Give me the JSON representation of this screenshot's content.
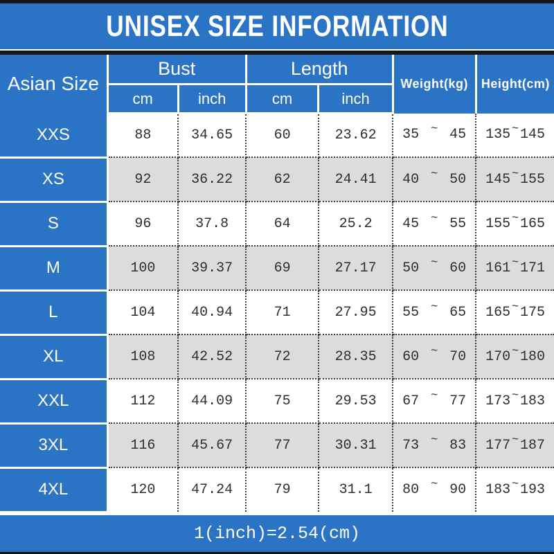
{
  "title": "UNISEX SIZE INFORMATION",
  "colors": {
    "blue": "#2B73C5",
    "row_alt": "#DCDCDC",
    "bar": "#151515",
    "header_text": "#FFFFFF",
    "data_text": "#2E2E2E"
  },
  "table": {
    "corner_header": "Asian Size",
    "groups": [
      {
        "label": "Bust",
        "sub": [
          "cm",
          "inch"
        ]
      },
      {
        "label": "Length",
        "sub": [
          "cm",
          "inch"
        ]
      }
    ],
    "single_headers": [
      "Weight(kg)",
      "Height(cm)"
    ],
    "range_separator": "~",
    "rows": [
      {
        "size": "XXS",
        "bust_cm": "88",
        "bust_inch": "34.65",
        "length_cm": "60",
        "length_inch": "23.62",
        "weight_min": "35",
        "weight_max": "45",
        "height_min": "135",
        "height_max": "145"
      },
      {
        "size": "XS",
        "bust_cm": "92",
        "bust_inch": "36.22",
        "length_cm": "62",
        "length_inch": "24.41",
        "weight_min": "40",
        "weight_max": "50",
        "height_min": "145",
        "height_max": "155"
      },
      {
        "size": "S",
        "bust_cm": "96",
        "bust_inch": "37.8",
        "length_cm": "64",
        "length_inch": "25.2",
        "weight_min": "45",
        "weight_max": "55",
        "height_min": "155",
        "height_max": "165"
      },
      {
        "size": "M",
        "bust_cm": "100",
        "bust_inch": "39.37",
        "length_cm": "69",
        "length_inch": "27.17",
        "weight_min": "50",
        "weight_max": "60",
        "height_min": "161",
        "height_max": "171"
      },
      {
        "size": "L",
        "bust_cm": "104",
        "bust_inch": "40.94",
        "length_cm": "71",
        "length_inch": "27.95",
        "weight_min": "55",
        "weight_max": "65",
        "height_min": "165",
        "height_max": "175"
      },
      {
        "size": "XL",
        "bust_cm": "108",
        "bust_inch": "42.52",
        "length_cm": "72",
        "length_inch": "28.35",
        "weight_min": "60",
        "weight_max": "70",
        "height_min": "170",
        "height_max": "180"
      },
      {
        "size": "XXL",
        "bust_cm": "112",
        "bust_inch": "44.09",
        "length_cm": "75",
        "length_inch": "29.53",
        "weight_min": "67",
        "weight_max": "77",
        "height_min": "173",
        "height_max": "183"
      },
      {
        "size": "3XL",
        "bust_cm": "116",
        "bust_inch": "45.67",
        "length_cm": "77",
        "length_inch": "30.31",
        "weight_min": "73",
        "weight_max": "83",
        "height_min": "177",
        "height_max": "187"
      },
      {
        "size": "4XL",
        "bust_cm": "120",
        "bust_inch": "47.24",
        "length_cm": "79",
        "length_inch": "31.1",
        "weight_min": "80",
        "weight_max": "90",
        "height_min": "183",
        "height_max": "193"
      }
    ]
  },
  "footer": {
    "note": "1(inch)=2.54(cm)"
  },
  "chart_data": {
    "type": "table",
    "title": "UNISEX SIZE INFORMATION",
    "columns": [
      "Asian Size",
      "Bust cm",
      "Bust inch",
      "Length cm",
      "Length inch",
      "Weight(kg)",
      "Height(cm)"
    ],
    "rows": [
      [
        "XXS",
        88,
        34.65,
        60,
        23.62,
        "35~45",
        "135~145"
      ],
      [
        "XS",
        92,
        36.22,
        62,
        24.41,
        "40~50",
        "145~155"
      ],
      [
        "S",
        96,
        37.8,
        64,
        25.2,
        "45~55",
        "155~165"
      ],
      [
        "M",
        100,
        39.37,
        69,
        27.17,
        "50~60",
        "161~171"
      ],
      [
        "L",
        104,
        40.94,
        71,
        27.95,
        "55~65",
        "165~175"
      ],
      [
        "XL",
        108,
        42.52,
        72,
        28.35,
        "60~70",
        "170~180"
      ],
      [
        "XXL",
        112,
        44.09,
        75,
        29.53,
        "67~77",
        "173~183"
      ],
      [
        "3XL",
        116,
        45.67,
        77,
        30.31,
        "73~83",
        "177~187"
      ],
      [
        "4XL",
        120,
        47.24,
        79,
        31.1,
        "80~90",
        "183~193"
      ]
    ],
    "note": "1(inch)=2.54(cm)",
    "layout": {
      "header_fill": "#2B73C5",
      "alt_row_fill": "#DCDCDC",
      "grid": "dotted"
    }
  }
}
